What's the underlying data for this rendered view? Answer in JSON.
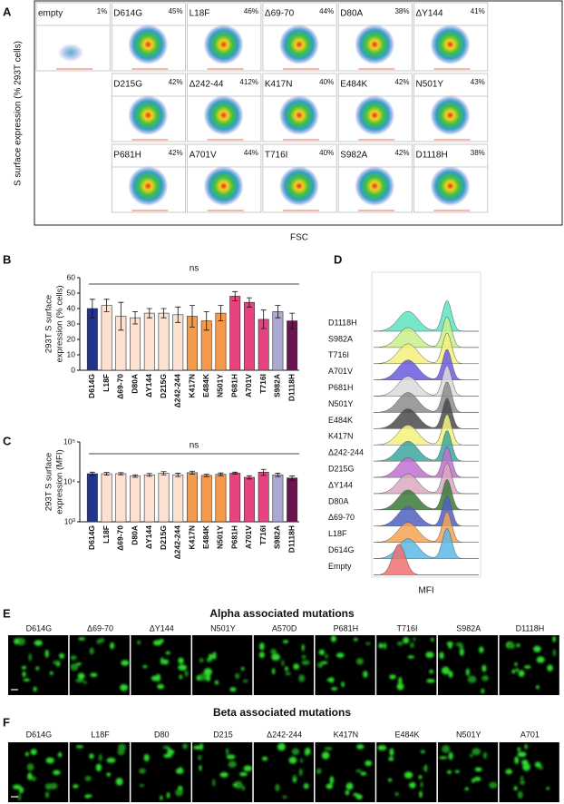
{
  "panel_labels": [
    "A",
    "B",
    "C",
    "D",
    "E",
    "F"
  ],
  "flow_panel": {
    "y_label": "S surface expression (% 293T cells)",
    "x_label": "FSC",
    "rows": [
      [
        {
          "name": "empty",
          "percent": "1%"
        },
        {
          "name": "D614G",
          "percent": "45%"
        },
        {
          "name": "L18F",
          "percent": "46%"
        },
        {
          "name": "Δ69-70",
          "percent": "44%"
        },
        {
          "name": "D80A",
          "percent": "38%"
        },
        {
          "name": "ΔY144",
          "percent": "41%"
        }
      ],
      [
        {
          "name": "D215G",
          "percent": "42%"
        },
        {
          "name": "Δ242-44",
          "percent": "412%"
        },
        {
          "name": "K417N",
          "percent": "40%"
        },
        {
          "name": "E484K",
          "percent": "42%"
        },
        {
          "name": "N501Y",
          "percent": "43%"
        }
      ],
      [
        {
          "name": "P681H",
          "percent": "42%"
        },
        {
          "name": "A701V",
          "percent": "44%"
        },
        {
          "name": "T716I",
          "percent": "40%"
        },
        {
          "name": "S982A",
          "percent": "42%"
        },
        {
          "name": "D1118H",
          "percent": "38%"
        }
      ]
    ]
  },
  "chart_data": [
    {
      "type": "bar",
      "log_scale": false,
      "y_label": [
        "293T S surface",
        "expression (% cells)"
      ],
      "annotation": "ns",
      "categories": [
        "D614G",
        "L18F",
        "Δ69-70",
        "D80A",
        "ΔY144",
        "D215G",
        "Δ242-244",
        "K417N",
        "E484K",
        "N501Y",
        "P681H",
        "A701V",
        "T716I",
        "S982A",
        "D1118H"
      ],
      "values": [
        40,
        42,
        35,
        34,
        37,
        37,
        36,
        35,
        32,
        37,
        48,
        44,
        33,
        38,
        32
      ],
      "errors": [
        6,
        4,
        9,
        4,
        3,
        3,
        5,
        7,
        6,
        5,
        3,
        3,
        6,
        4,
        5
      ],
      "colors": [
        "#24348a",
        "#fde2d4",
        "#fde2d4",
        "#fde2d4",
        "#fde2d4",
        "#fde2d4",
        "#fde2d4",
        "#f39a4c",
        "#f39a4c",
        "#f39a4c",
        "#e8437e",
        "#e8437e",
        "#e8437e",
        "#a9a9d2",
        "#6b1450"
      ],
      "ylim": [
        0,
        60
      ],
      "yticks": [
        0,
        10,
        20,
        30,
        40,
        50,
        60
      ]
    },
    {
      "type": "bar",
      "log_scale": true,
      "y_label": [
        "293T S surface",
        "expression (MFI)"
      ],
      "annotation": "ns",
      "categories": [
        "D614G",
        "L18F",
        "Δ69-70",
        "D80A",
        "ΔY144",
        "D215G",
        "Δ242-244",
        "K417N",
        "E484K",
        "N501Y",
        "P681H",
        "A701V",
        "T716I",
        "S982A",
        "D1118H"
      ],
      "values": [
        16000,
        16000,
        16000,
        14000,
        15000,
        16500,
        15000,
        17000,
        14500,
        15500,
        16500,
        13000,
        17500,
        15000,
        12500
      ],
      "errors": [
        1500,
        1200,
        1000,
        1000,
        1200,
        1500,
        1500,
        1500,
        1000,
        1200,
        1000,
        1200,
        3000,
        1500,
        1500
      ],
      "colors": [
        "#24348a",
        "#fde2d4",
        "#fde2d4",
        "#fde2d4",
        "#fde2d4",
        "#fde2d4",
        "#fde2d4",
        "#f39a4c",
        "#f39a4c",
        "#f39a4c",
        "#e8437e",
        "#e8437e",
        "#e8437e",
        "#a9a9d2",
        "#6b1450"
      ],
      "ylim": [
        1000,
        100000
      ],
      "yticks": [
        {
          "value": 1000,
          "label": "10³"
        },
        {
          "value": 10000,
          "label": "10⁴"
        },
        {
          "value": 100000,
          "label": "10⁵"
        }
      ]
    }
  ],
  "histogram_panel": {
    "x_label": "MFI",
    "labels": [
      "D1118H",
      "S982A",
      "T716I",
      "A701V",
      "P681H",
      "N501Y",
      "E484K",
      "K417N",
      "Δ242-244",
      "D215G",
      "ΔY144",
      "D80A",
      "Δ69-70",
      "L18F",
      "D614G",
      "Empty"
    ],
    "colors": [
      "#5fe3c2",
      "#c9f08c",
      "#f4f07c",
      "#6a5ae0",
      "#dadada",
      "#8c8c8c",
      "#4a4a4a",
      "#f2f27c",
      "#3aa8a0",
      "#c070d0",
      "#d9a9c1",
      "#3a7a3a",
      "#5060c0",
      "#f5a352",
      "#5ab8e8",
      "#f07070"
    ]
  },
  "image_panels": [
    {
      "title": "Alpha associated mutations",
      "labels": [
        "D614G",
        "Δ69-70",
        "ΔY144",
        "N501Y",
        "A570D",
        "P681H",
        "T716I",
        "S982A",
        "D1118H"
      ]
    },
    {
      "title": "Beta associated mutations",
      "labels": [
        "D614G",
        "L18F",
        "D80",
        "D215",
        "Δ242-244",
        "K417N",
        "E484K",
        "N501Y",
        "A701"
      ]
    }
  ]
}
